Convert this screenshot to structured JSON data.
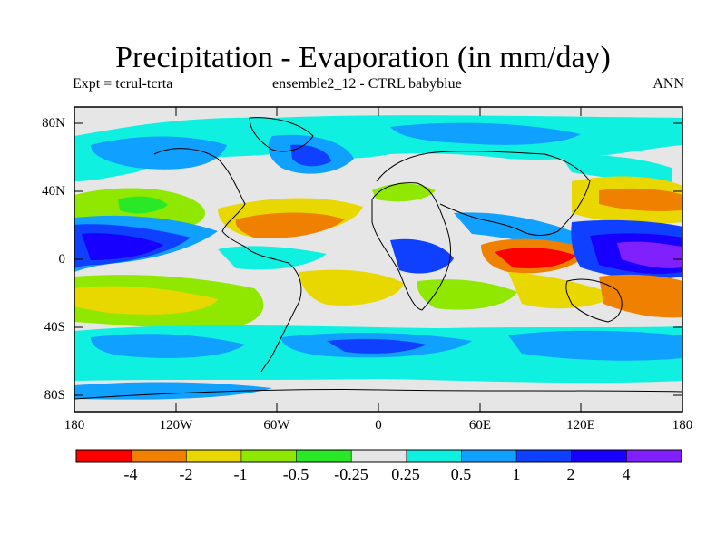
{
  "figure": {
    "title": "Precipitation - Evaporation (in mm/day)",
    "subtitle_left": "Expt = tcrul-tcrta",
    "subtitle_center": "ensemble2_12 - CTRL babyblue",
    "subtitle_right": "ANN"
  },
  "axes": {
    "lat_labels": [
      "80N",
      "40N",
      "0",
      "40S",
      "80S"
    ],
    "lon_labels": [
      "180",
      "120W",
      "60W",
      "0",
      "60E",
      "120E",
      "180"
    ]
  },
  "colorbar": {
    "colors": [
      "#ff0000",
      "#f08000",
      "#e8d800",
      "#90e800",
      "#28e828",
      "#e6e6e6",
      "#10f0e0",
      "#10a0ff",
      "#1040ff",
      "#1800ff",
      "#8020ff"
    ],
    "labels": [
      "-4",
      "-2",
      "-1",
      "-0.5",
      "-0.25",
      "0.25",
      "0.5",
      "1",
      "2",
      "4"
    ]
  },
  "palette": {
    "land": "#e6e6e6",
    "neutral": "#e6e6e6",
    "cyan": "#10f0e0",
    "lightblue": "#10a0ff",
    "blue": "#1040ff",
    "deepblue": "#1800ff",
    "purple": "#8020ff",
    "green": "#28e828",
    "lime": "#90e800",
    "yellow": "#e8d800",
    "orange": "#f08000",
    "red": "#ff0000"
  }
}
